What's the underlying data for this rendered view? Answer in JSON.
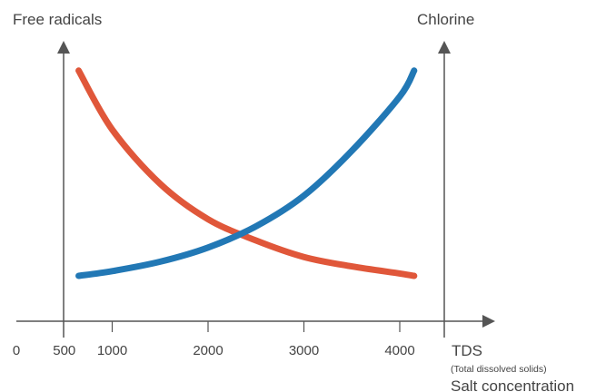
{
  "chart_data": {
    "type": "line",
    "title": "",
    "left_axis_label": "Free radicals",
    "right_axis_label": "Chlorine",
    "xlabel": "TDS",
    "xlabel_sub": "(Total dissolved solids)",
    "xlabel_2": "Salt concentration",
    "xlim": [
      0,
      5000
    ],
    "ylim": [
      0,
      100
    ],
    "x_ticks": [
      0,
      500,
      1000,
      2000,
      3000,
      4000
    ],
    "x_tick_labels": [
      "0",
      "500",
      "1000",
      "2000",
      "3000",
      "4000"
    ],
    "y_ticks_visible": false,
    "grid": false,
    "legend": "none",
    "series": [
      {
        "color": "#e0573a",
        "x": [
          650,
          1000,
          1500,
          2000,
          2500,
          3000,
          3500,
          4000,
          4150
        ],
        "y": [
          97,
          72,
          49,
          34,
          25,
          18,
          14,
          11,
          10
        ]
      },
      {
        "color": "#2278b5",
        "x": [
          650,
          1000,
          1500,
          2000,
          2500,
          3000,
          3500,
          4000,
          4150
        ],
        "y": [
          10,
          12,
          16,
          22,
          31,
          44,
          63,
          86,
          97
        ]
      }
    ]
  }
}
